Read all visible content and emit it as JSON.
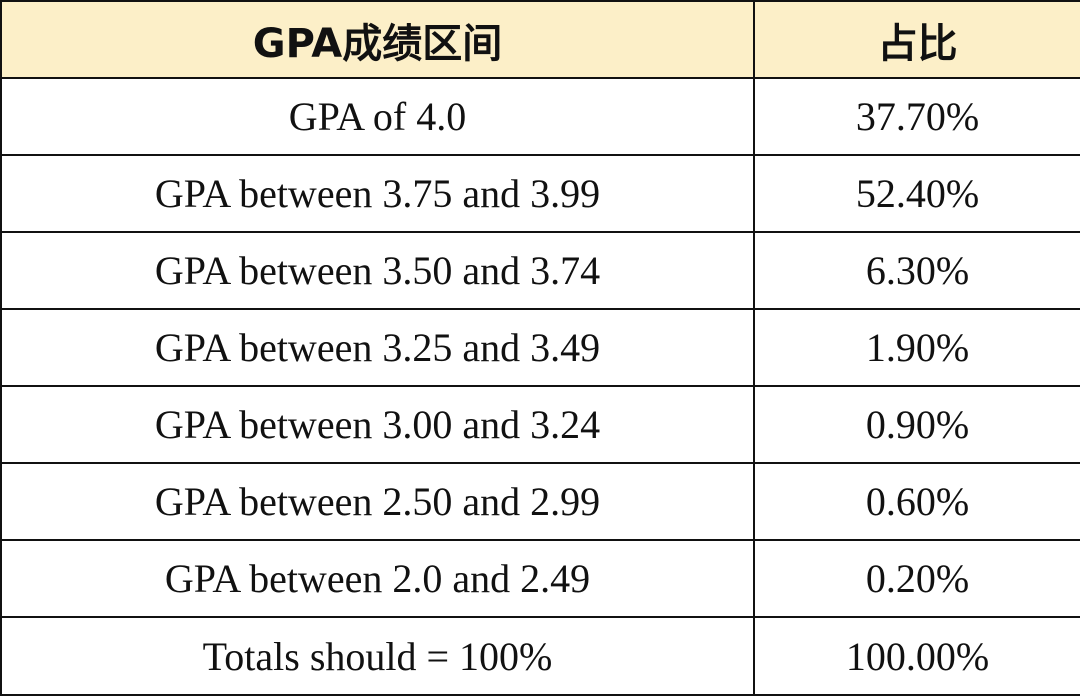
{
  "table": {
    "headers": [
      "GPA成绩区间",
      "占比"
    ],
    "rows": [
      {
        "range": "GPA of 4.0",
        "percent": "37.70%"
      },
      {
        "range": "GPA between 3.75 and 3.99",
        "percent": "52.40%"
      },
      {
        "range": "GPA between 3.50 and 3.74",
        "percent": "6.30%"
      },
      {
        "range": "GPA between 3.25 and 3.49",
        "percent": "1.90%"
      },
      {
        "range": "GPA between 3.00 and 3.24",
        "percent": "0.90%"
      },
      {
        "range": "GPA between 2.50 and 2.99",
        "percent": "0.60%"
      },
      {
        "range": "GPA between 2.0 and 2.49",
        "percent": "0.20%"
      },
      {
        "range": "Totals should = 100%",
        "percent": "100.00%"
      }
    ]
  },
  "colors": {
    "header_background": "#fcefc8",
    "border": "#111111",
    "text": "#111111"
  }
}
